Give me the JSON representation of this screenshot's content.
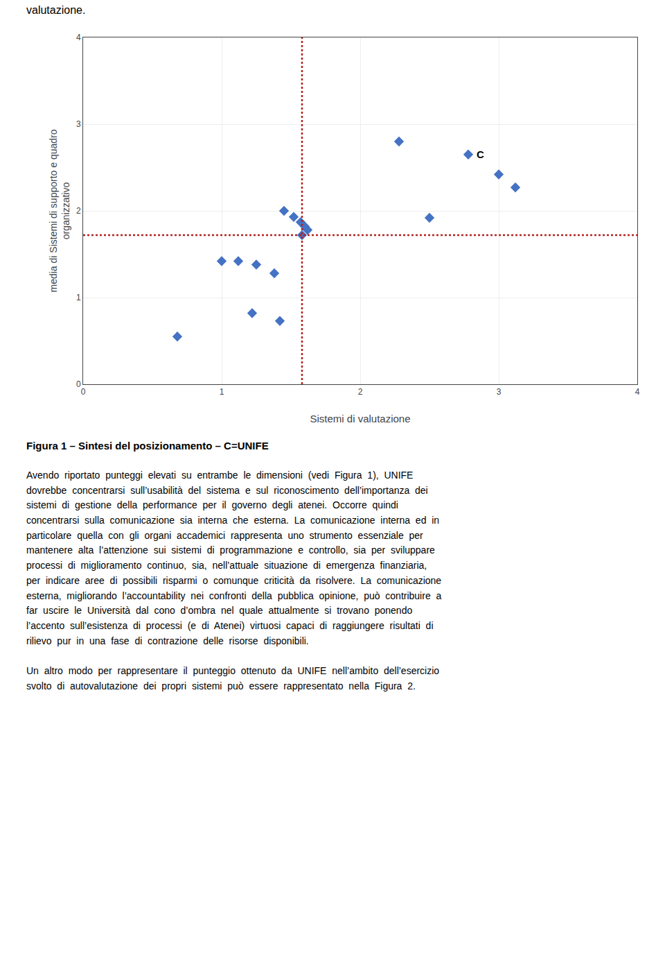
{
  "chart_data": {
    "type": "scatter",
    "x": [
      1.0,
      1.12,
      1.25,
      1.38,
      1.22,
      1.42,
      0.68,
      1.45,
      1.52,
      1.57,
      1.6,
      1.62,
      1.58,
      2.28,
      2.78,
      3.0,
      3.12,
      2.5
    ],
    "values": [
      1.42,
      1.42,
      1.38,
      1.28,
      0.82,
      0.73,
      0.55,
      2.0,
      1.93,
      1.87,
      1.82,
      1.78,
      1.72,
      2.8,
      2.65,
      2.42,
      2.27,
      1.92
    ],
    "color": "#4472C4",
    "marker": "diamond",
    "xlim": [
      0,
      4
    ],
    "ylim": [
      0,
      4
    ],
    "xticks": [
      0,
      1,
      2,
      3,
      4
    ],
    "yticks": [
      0,
      1,
      2,
      3,
      4
    ],
    "grid": true,
    "xlabel": "Sistemi di valutazione",
    "ylabel": [
      "media di Sistemi di supporto e quadro",
      "organizzativo"
    ],
    "reference_lines": [
      {
        "axis": "x",
        "value": 1.58,
        "color": "#B22222",
        "line_style": "dotted"
      },
      {
        "axis": "y",
        "value": 1.72,
        "color": "#B22222",
        "line_style": "dotted"
      }
    ],
    "annotations": [
      {
        "text": "C",
        "x": 2.78,
        "y": 2.65
      }
    ],
    "header": "valutazione.",
    "caption": "Figura 1 – Sintesi del posizionamento – C=UNIFE",
    "body": [
      "Avendo  riportato  punteggi  elevati  su  entrambe  le  dimensioni  (vedi  Figura  1),  UNIFE\ndovrebbe  concentrarsi  sull’usabilità  del  sistema  e  sul  riconoscimento  dell’importanza  dei\nsistemi  di  gestione  della  performance  per  il  governo  degli  atenei.  Occorre  quindi\nconcentrarsi  sulla  comunicazione  sia  interna  che  esterna.  La  comunicazione  interna  ed  in\nparticolare  quella  con  gli  organi  accademici  rappresenta  uno  strumento  essenziale  per\nmantenere  alta  l’attenzione  sui  sistemi  di  programmazione  e  controllo,  sia  per  sviluppare\nprocessi  di  miglioramento  continuo,  sia,  nell’attuale  situazione  di  emergenza  finanziaria,\nper  indicare  aree  di  possibili  risparmi  o  comunque  criticità  da  risolvere.  La  comunicazione\nesterna,  migliorando  l’accountability  nei  confronti  della  pubblica  opinione,  può  contribuire  a\nfar  uscire  le  Università  dal  cono  d’ombra  nel  quale  attualmente  si  trovano  ponendo\nl’accento  sull’esistenza  di  processi  (e  di  Atenei)  virtuosi  capaci  di  raggiungere  risultati  di\nrilievo  pur  in  una  fase  di  contrazione  delle  risorse  disponibili.",
      "Un  altro  modo  per  rappresentare  il  punteggio  ottenuto  da  UNIFE  nell’ambito  dell’esercizio\nsvolto  di  autovalutazione  dei  propri  sistemi  può  essere  rappresentato  nella  Figura  2."
    ]
  }
}
